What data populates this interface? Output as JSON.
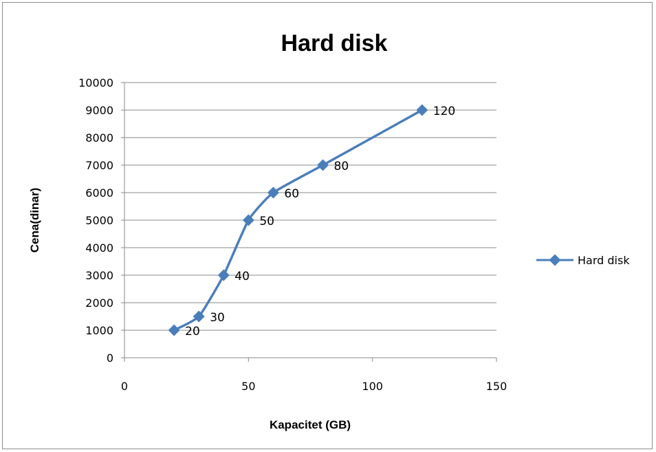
{
  "chart_data": {
    "type": "line",
    "title": "Hard disk",
    "xlabel": "Kapacitet (GB)",
    "ylabel": "Cena(dinar)",
    "xlim": [
      0,
      150
    ],
    "ylim": [
      0,
      10000
    ],
    "x_ticks": [
      0,
      50,
      100,
      150
    ],
    "y_ticks": [
      0,
      1000,
      2000,
      3000,
      4000,
      5000,
      6000,
      7000,
      8000,
      9000,
      10000
    ],
    "grid": "horizontal",
    "legend_position": "right",
    "series": [
      {
        "name": "Hard disk",
        "color": "#4a7ebb",
        "marker": "diamond",
        "smooth": true,
        "points": [
          {
            "x": 20,
            "y": 1000,
            "label": "20"
          },
          {
            "x": 30,
            "y": 1500,
            "label": "30"
          },
          {
            "x": 40,
            "y": 3000,
            "label": "40"
          },
          {
            "x": 50,
            "y": 5000,
            "label": "50"
          },
          {
            "x": 60,
            "y": 6000,
            "label": "60"
          },
          {
            "x": 80,
            "y": 7000,
            "label": "80"
          },
          {
            "x": 120,
            "y": 9000,
            "label": "120"
          }
        ]
      }
    ]
  }
}
